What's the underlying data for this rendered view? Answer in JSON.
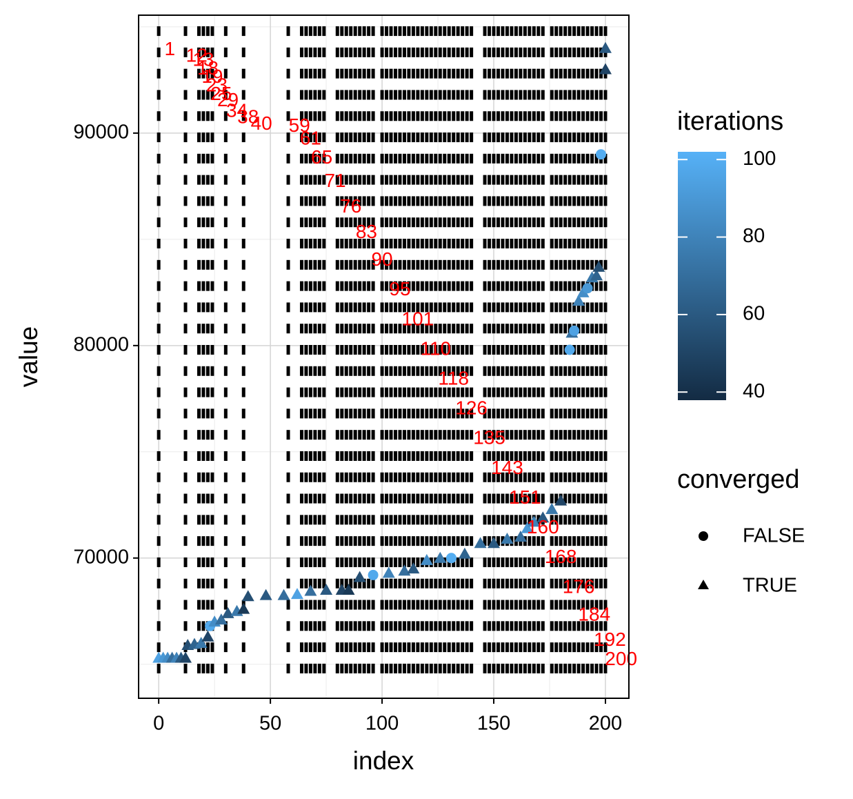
{
  "chart_data": {
    "type": "scatter",
    "x_label": "index",
    "y_label": "value",
    "xlim": [
      -9,
      210.5
    ],
    "ylim": [
      63400,
      95550
    ],
    "xticks": [
      0,
      50,
      100,
      150,
      200
    ],
    "yticks": [
      70000,
      80000,
      90000
    ],
    "x_minor": [
      25,
      75,
      125,
      175
    ],
    "y_minor": [
      65000,
      75000,
      85000,
      95000
    ],
    "grid": true,
    "dash_columns": [
      0,
      12,
      18,
      20,
      22,
      24,
      30,
      38,
      58,
      64,
      66,
      68,
      70,
      72,
      74,
      80,
      82,
      84,
      86,
      88,
      90,
      92,
      94,
      96,
      100,
      102,
      104,
      106,
      108,
      110,
      112,
      114,
      116,
      118,
      120,
      122,
      124,
      126,
      128,
      130,
      132,
      134,
      136,
      138,
      140,
      146,
      148,
      150,
      152,
      154,
      156,
      158,
      160,
      162,
      164,
      166,
      168,
      170,
      172,
      176,
      178,
      180,
      182,
      184,
      186,
      188,
      190,
      192,
      194,
      196,
      198,
      200
    ],
    "dash_levels": [
      64800,
      65800,
      66800,
      67800,
      68800,
      69800,
      70800,
      71800,
      72800,
      73800,
      74800,
      75800,
      76800,
      77800,
      78800,
      79800,
      80800,
      81800,
      82800,
      83800,
      84800,
      85800,
      86800,
      87800,
      88800,
      89800,
      90800,
      91800,
      92800,
      93800,
      94800
    ],
    "dash_color": "#000000",
    "points": {
      "x": [
        0,
        2,
        4,
        6,
        8,
        10,
        12,
        13,
        16,
        19,
        22,
        23,
        25,
        28,
        31,
        35,
        38,
        40,
        48,
        56,
        62,
        68,
        75,
        82,
        85,
        90,
        96,
        103,
        110,
        114,
        120,
        126,
        131,
        137,
        144,
        150,
        156,
        162,
        165,
        168,
        172,
        176,
        180,
        184,
        185,
        186,
        188,
        190,
        192,
        194,
        196,
        197,
        198,
        200,
        200
      ],
      "y": [
        65300,
        65300,
        65300,
        65300,
        65300,
        65300,
        65300,
        65900,
        65950,
        66000,
        66300,
        66800,
        67000,
        67100,
        67400,
        67500,
        67600,
        68200,
        68250,
        68250,
        68300,
        68450,
        68500,
        68500,
        68500,
        69100,
        69200,
        69300,
        69400,
        69500,
        69900,
        70000,
        70000,
        70200,
        70700,
        70700,
        70900,
        71000,
        71400,
        71700,
        71900,
        72300,
        72700,
        79800,
        80600,
        80700,
        82100,
        82500,
        82700,
        83200,
        83300,
        83700,
        89000,
        93000,
        94000
      ],
      "iterations": [
        95,
        90,
        85,
        70,
        80,
        60,
        50,
        55,
        65,
        75,
        50,
        98,
        85,
        70,
        60,
        75,
        45,
        55,
        60,
        70,
        95,
        70,
        60,
        50,
        45,
        55,
        98,
        80,
        70,
        60,
        85,
        75,
        100,
        65,
        70,
        60,
        75,
        70,
        90,
        80,
        60,
        75,
        50,
        98,
        70,
        95,
        80,
        85,
        90,
        75,
        65,
        55,
        100,
        50,
        60
      ],
      "converged": [
        true,
        true,
        true,
        true,
        true,
        true,
        true,
        true,
        true,
        true,
        true,
        false,
        true,
        true,
        true,
        true,
        true,
        true,
        true,
        true,
        true,
        true,
        true,
        true,
        true,
        true,
        false,
        true,
        true,
        true,
        true,
        true,
        false,
        true,
        true,
        true,
        true,
        true,
        true,
        true,
        true,
        true,
        true,
        false,
        true,
        false,
        true,
        true,
        false,
        true,
        true,
        true,
        false,
        true,
        true
      ]
    },
    "labels": {
      "x": [
        5,
        17,
        20,
        22,
        24,
        26,
        28,
        31,
        35,
        40,
        46,
        63,
        68,
        73,
        79,
        86,
        93,
        100,
        108,
        116,
        124,
        132,
        140,
        148,
        156,
        164,
        172,
        180,
        188,
        195,
        202,
        207
      ],
      "y": [
        93900,
        93600,
        93400,
        93000,
        92600,
        92200,
        91800,
        91500,
        91000,
        90700,
        90400,
        90300,
        89700,
        88800,
        87700,
        86500,
        85300,
        84000,
        82600,
        81200,
        79800,
        78400,
        77000,
        75600,
        74200,
        72800,
        71400,
        70000,
        68600,
        67300,
        66100,
        65200
      ],
      "text": [
        "1",
        "12",
        "13",
        "18",
        "19",
        "23",
        "25",
        "29",
        "34",
        "38",
        "40",
        "59",
        "61",
        "65",
        "71",
        "76",
        "83",
        "90",
        "95",
        "101",
        "110",
        "118",
        "126",
        "135",
        "143",
        "151",
        "160",
        "168",
        "176",
        "184",
        "192",
        "200"
      ],
      "color": "#ff0000"
    },
    "color_legend": {
      "title": "iterations",
      "lim": [
        37.9,
        102
      ],
      "ticks": [
        40,
        60,
        80,
        100
      ],
      "low": "#132B43",
      "high": "#56B1F7"
    },
    "shape_legend": {
      "title": "converged",
      "entries": [
        "FALSE",
        "TRUE"
      ]
    }
  }
}
